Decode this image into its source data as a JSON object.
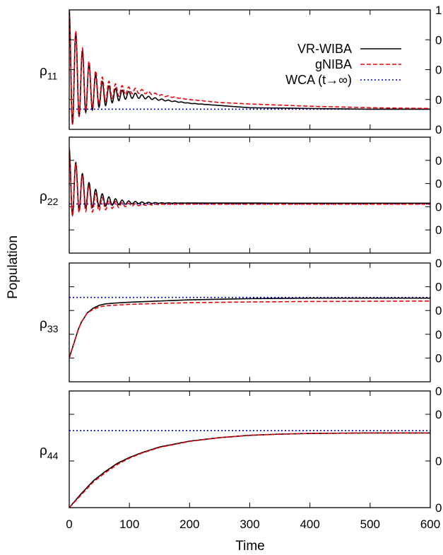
{
  "chart_data": {
    "type": "line",
    "xlabel": "Time",
    "ylabel": "Population",
    "xlim": [
      0,
      600
    ],
    "x_ticks": [
      "0",
      "100",
      "200",
      "300",
      "400",
      "500",
      "600"
    ],
    "legend": {
      "position": "top-right",
      "entries": [
        {
          "name": "VR-WIBA",
          "color": "#000000",
          "style": "solid"
        },
        {
          "name": "gNIBA",
          "color": "#e8000b",
          "style": "dashed"
        },
        {
          "name": "WCA (t→∞)",
          "color": "#0000ee",
          "style": "dotted"
        }
      ]
    },
    "panels": [
      {
        "label_main": "ρ",
        "label_sub": "11",
        "ylim": [
          0.2,
          1.0
        ],
        "y_ticks": [
          {
            "value": 1.0,
            "label": "1"
          },
          {
            "value": 0.8,
            "label": "0"
          },
          {
            "value": 0.6,
            "label": "0"
          },
          {
            "value": 0.4,
            "label": "0"
          },
          {
            "value": 0.2,
            "label": "0"
          }
        ],
        "osc": {
          "period": 11,
          "decay": 35
        },
        "vr_wiba": {
          "x": [
            0,
            20,
            40,
            60,
            80,
            100,
            120,
            150,
            200,
            250,
            300,
            400,
            500,
            600
          ],
          "y": [
            0.6,
            0.52,
            0.46,
            0.43,
            0.43,
            0.43,
            0.42,
            0.4,
            0.375,
            0.36,
            0.345,
            0.34,
            0.335,
            0.335
          ]
        },
        "gniba": {
          "x": [
            0,
            20,
            40,
            60,
            80,
            100,
            120,
            150,
            200,
            250,
            300,
            400,
            500,
            600
          ],
          "y": [
            0.6,
            0.53,
            0.48,
            0.46,
            0.46,
            0.46,
            0.455,
            0.43,
            0.4,
            0.38,
            0.37,
            0.355,
            0.345,
            0.34
          ]
        },
        "osc_amp": 0.4,
        "wca": 0.335
      },
      {
        "label_main": "ρ",
        "label_sub": "22",
        "ylim": [
          0.0,
          0.5
        ],
        "y_ticks": [
          {
            "value": 0.4,
            "label": "0"
          },
          {
            "value": 0.3,
            "label": "0"
          },
          {
            "value": 0.2,
            "label": "0"
          },
          {
            "value": 0.1,
            "label": "0"
          }
        ],
        "osc": {
          "period": 11,
          "decay": 32
        },
        "vr_wiba": {
          "x": [
            0,
            20,
            40,
            60,
            80,
            100,
            150,
            200,
            300,
            400,
            500,
            600
          ],
          "y": [
            0.3,
            0.27,
            0.24,
            0.225,
            0.22,
            0.218,
            0.216,
            0.216,
            0.216,
            0.215,
            0.215,
            0.215
          ]
        },
        "gniba": {
          "x": [
            0,
            20,
            40,
            60,
            80,
            100,
            150,
            200,
            300,
            400,
            500,
            600
          ],
          "y": [
            0.3,
            0.26,
            0.22,
            0.21,
            0.208,
            0.208,
            0.21,
            0.211,
            0.211,
            0.211,
            0.211,
            0.211
          ]
        },
        "osc_amp": 0.15,
        "wca": 0.212
      },
      {
        "label_main": "ρ",
        "label_sub": "33",
        "ylim": [
          0.0,
          0.5
        ],
        "y_ticks": [
          {
            "value": 0.5,
            "label": "0"
          },
          {
            "value": 0.4,
            "label": "0"
          },
          {
            "value": 0.3,
            "label": "0"
          },
          {
            "value": 0.2,
            "label": "0"
          },
          {
            "value": 0.1,
            "label": "0"
          }
        ],
        "vr_wiba": {
          "x": [
            0,
            5,
            10,
            15,
            20,
            30,
            40,
            50,
            60,
            80,
            100,
            150,
            200,
            300,
            400,
            500,
            600
          ],
          "y": [
            0.1,
            0.14,
            0.18,
            0.22,
            0.25,
            0.29,
            0.31,
            0.322,
            0.328,
            0.332,
            0.335,
            0.34,
            0.345,
            0.35,
            0.352,
            0.352,
            0.352
          ]
        },
        "gniba": {
          "x": [
            0,
            5,
            10,
            15,
            20,
            30,
            40,
            50,
            60,
            80,
            100,
            150,
            200,
            300,
            400,
            500,
            600
          ],
          "y": [
            0.1,
            0.14,
            0.18,
            0.22,
            0.25,
            0.29,
            0.305,
            0.315,
            0.32,
            0.323,
            0.326,
            0.33,
            0.333,
            0.336,
            0.338,
            0.339,
            0.34
          ]
        },
        "wca": 0.355
      },
      {
        "label_main": "ρ",
        "label_sub": "44",
        "ylim": [
          0.0,
          0.5
        ],
        "y_ticks": [
          {
            "value": 0.5,
            "label": "0"
          },
          {
            "value": 0.4,
            "label": "0"
          },
          {
            "value": 0.2,
            "label": "0"
          },
          {
            "value": 0.0,
            "label": "0"
          }
        ],
        "vr_wiba": {
          "x": [
            0,
            20,
            40,
            60,
            80,
            100,
            120,
            150,
            200,
            250,
            300,
            350,
            400,
            500,
            600
          ],
          "y": [
            0.0,
            0.06,
            0.115,
            0.155,
            0.19,
            0.215,
            0.235,
            0.26,
            0.285,
            0.3,
            0.31,
            0.315,
            0.318,
            0.32,
            0.32
          ]
        },
        "gniba": {
          "x": [
            0,
            20,
            40,
            60,
            80,
            100,
            120,
            150,
            200,
            250,
            300,
            350,
            400,
            500,
            600
          ],
          "y": [
            0.0,
            0.055,
            0.11,
            0.15,
            0.185,
            0.212,
            0.233,
            0.258,
            0.284,
            0.3,
            0.31,
            0.315,
            0.318,
            0.32,
            0.32
          ]
        },
        "wca": 0.33
      }
    ]
  }
}
